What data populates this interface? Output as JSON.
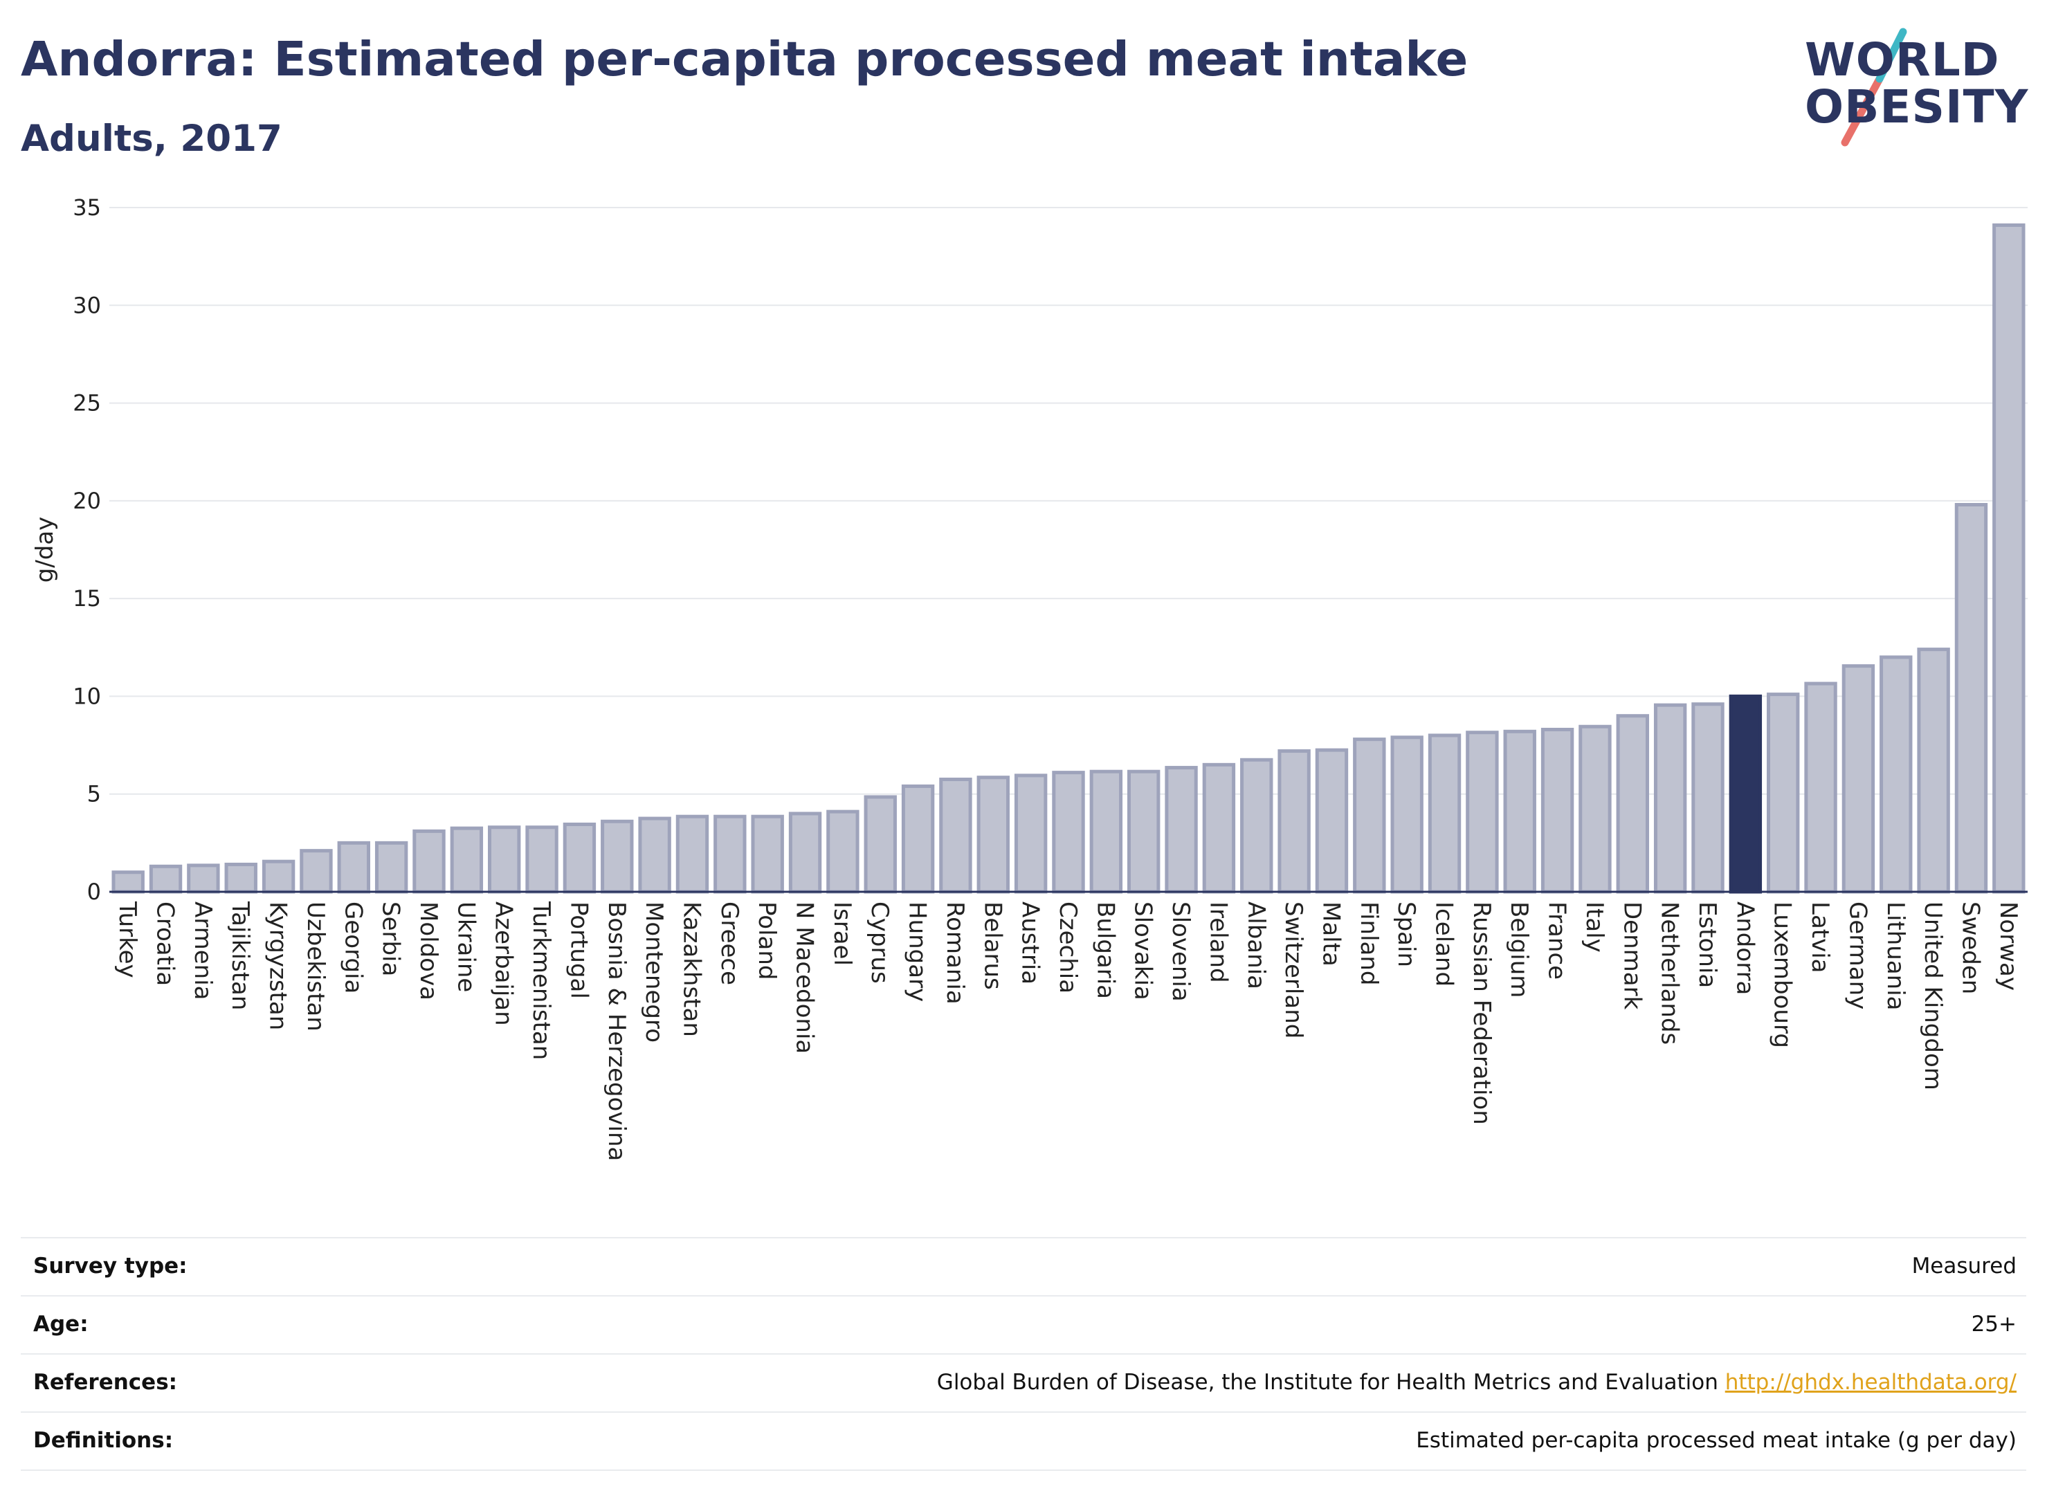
{
  "header": {
    "title": "Andorra: Estimated per-capita processed meat intake",
    "subtitle": "Adults, 2017"
  },
  "logo": {
    "line1": "WORLD",
    "line2": "OBESITY",
    "accent_colors": [
      "#e8716a",
      "#3fb7c5"
    ]
  },
  "colors": {
    "bar": "#bfc2d0",
    "bar_stroke": "#9ea3bb",
    "highlight": "#2b3560",
    "text": "#2b3560",
    "link": "#e0a21b"
  },
  "chart_data": {
    "type": "bar",
    "title": "Andorra: Estimated per-capita processed meat intake",
    "subtitle": "Adults, 2017",
    "ylabel": "g/day",
    "xlabel": "",
    "ylim": [
      0,
      35
    ],
    "yticks": [
      0,
      5,
      10,
      15,
      20,
      25,
      30,
      35
    ],
    "grid": true,
    "highlight": "Andorra",
    "categories": [
      "Turkey",
      "Croatia",
      "Armenia",
      "Tajikistan",
      "Kyrgyzstan",
      "Uzbekistan",
      "Georgia",
      "Serbia",
      "Moldova",
      "Ukraine",
      "Azerbaijan",
      "Turkmenistan",
      "Portugal",
      "Bosnia & Herzegovina",
      "Montenegro",
      "Kazakhstan",
      "Greece",
      "Poland",
      "N Macedonia",
      "Israel",
      "Cyprus",
      "Hungary",
      "Romania",
      "Belarus",
      "Austria",
      "Czechia",
      "Bulgaria",
      "Slovakia",
      "Slovenia",
      "Ireland",
      "Albania",
      "Switzerland",
      "Malta",
      "Finland",
      "Spain",
      "Iceland",
      "Russian Federation",
      "Belgium",
      "France",
      "Italy",
      "Denmark",
      "Netherlands",
      "Estonia",
      "Andorra",
      "Luxembourg",
      "Latvia",
      "Germany",
      "Lithuania",
      "United Kingdom",
      "Sweden",
      "Norway"
    ],
    "values": [
      1.0,
      1.3,
      1.35,
      1.4,
      1.55,
      2.1,
      2.5,
      2.5,
      3.1,
      3.25,
      3.3,
      3.3,
      3.45,
      3.6,
      3.75,
      3.85,
      3.85,
      3.85,
      4.0,
      4.1,
      4.85,
      5.4,
      5.75,
      5.85,
      5.95,
      6.1,
      6.15,
      6.15,
      6.35,
      6.5,
      6.75,
      7.2,
      7.25,
      7.8,
      7.9,
      8.0,
      8.15,
      8.2,
      8.3,
      8.45,
      9.0,
      9.55,
      9.6,
      10.0,
      10.1,
      10.65,
      11.55,
      12.0,
      12.4,
      19.8,
      34.1
    ]
  },
  "info": [
    {
      "label": "Survey type:",
      "value": "Measured"
    },
    {
      "label": "Age:",
      "value": "25+"
    },
    {
      "label": "References:",
      "value": "Global Burden of Disease, the Institute for Health Metrics and Evaluation",
      "link": "http://ghdx.healthdata.org/"
    },
    {
      "label": "Definitions:",
      "value": "Estimated per-capita processed meat intake (g per day)"
    }
  ]
}
